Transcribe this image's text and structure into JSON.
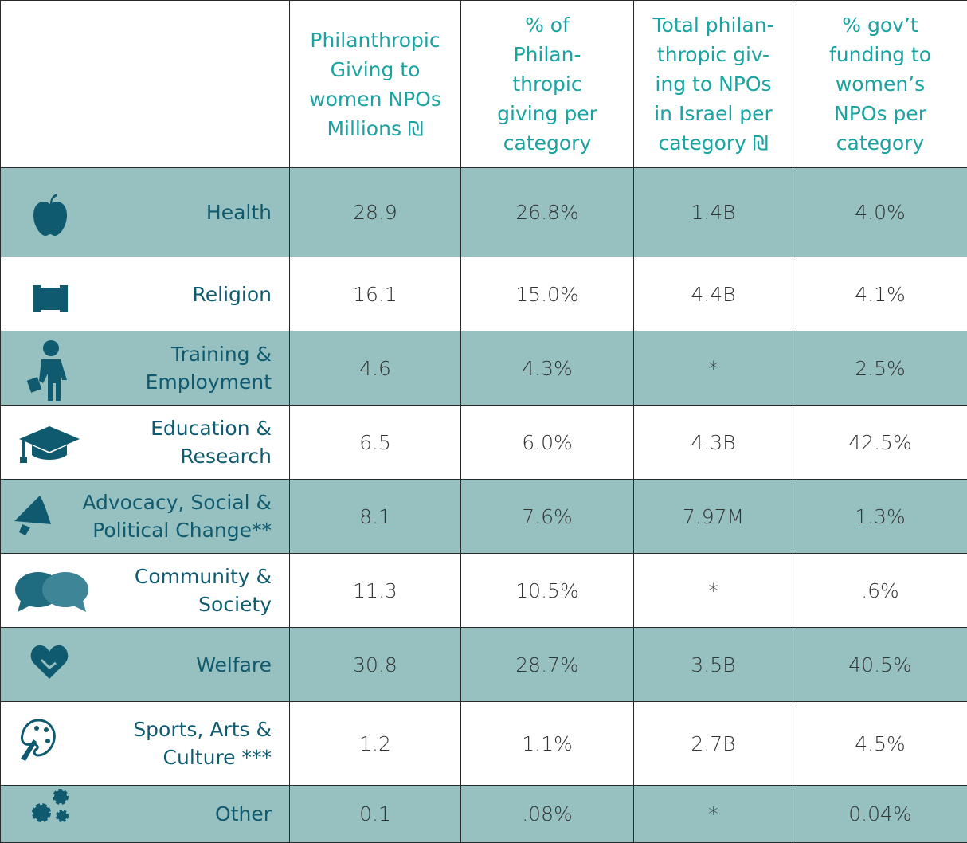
{
  "table": {
    "headers": [
      [
        "Philanthropic",
        "Giving to",
        "women NPOs",
        "Millions ₪"
      ],
      [
        "% of",
        "Philan-",
        "thropic",
        "giving per",
        "category"
      ],
      [
        "Total philan-",
        "thropic giv-",
        "ing to NPOs",
        "in Israel per",
        "category ₪"
      ],
      [
        "%  gov’t",
        "funding to",
        "women’s",
        "NPOs per",
        "category"
      ]
    ],
    "rows": [
      {
        "label": [
          "Health"
        ],
        "cells": [
          "28.9",
          "26.8%",
          "1.4B",
          "4.0%"
        ]
      },
      {
        "label": [
          "Religion"
        ],
        "cells": [
          "16.1",
          "15.0%",
          "4.4B",
          "4.1%"
        ]
      },
      {
        "label": [
          "Training &",
          "Employment"
        ],
        "cells": [
          "4.6",
          "4.3%",
          "*",
          "2.5%"
        ]
      },
      {
        "label": [
          "Education &",
          "Research"
        ],
        "cells": [
          "6.5",
          "6.0%",
          "4.3B",
          "42.5%"
        ]
      },
      {
        "label": [
          "Advocacy, Social &",
          "Political Change**"
        ],
        "cells": [
          "8.1",
          "7.6%",
          "7.97M",
          "1.3%"
        ]
      },
      {
        "label": [
          "Community &",
          "Society"
        ],
        "cells": [
          "11.3",
          "10.5%",
          "*",
          ".6%"
        ]
      },
      {
        "label": [
          "Welfare"
        ],
        "cells": [
          "30.8",
          "28.7%",
          "3.5B",
          "40.5%"
        ]
      },
      {
        "label": [
          "Sports, Arts &",
          "Culture ***"
        ],
        "cells": [
          "1.2",
          "1.1%",
          "2.7B",
          "4.5%"
        ]
      },
      {
        "label": [
          "Other"
        ],
        "cells": [
          "0.1",
          ".08%",
          "*",
          "0.04%"
        ]
      }
    ]
  }
}
